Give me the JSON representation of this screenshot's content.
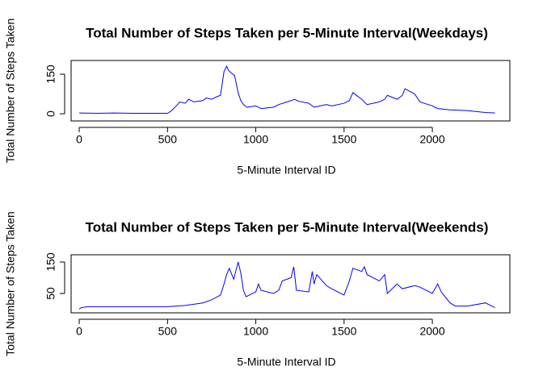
{
  "chart_data": [
    {
      "type": "line",
      "title": "Total Number of Steps Taken per 5-Minute Interval(Weekdays)",
      "x_label": "5-Minute Interval ID",
      "y_label": "Total Number of Steps Taken",
      "xlim": [
        -46,
        2439
      ],
      "ylim": [
        -27,
        202
      ],
      "xticks": [
        0,
        500,
        1000,
        1500,
        2000
      ],
      "yticks": [
        0,
        150
      ],
      "series": [
        {
          "color": "#0000ff",
          "x": [
            0,
            100,
            200,
            300,
            400,
            500,
            520,
            550,
            570,
            600,
            620,
            650,
            700,
            720,
            750,
            780,
            800,
            820,
            835,
            845,
            860,
            880,
            900,
            915,
            930,
            950,
            1000,
            1030,
            1100,
            1130,
            1200,
            1220,
            1240,
            1300,
            1330,
            1400,
            1430,
            1500,
            1530,
            1550,
            1600,
            1630,
            1700,
            1730,
            1745,
            1800,
            1830,
            1845,
            1900,
            1930,
            2000,
            2030,
            2100,
            2200,
            2300,
            2355
          ],
          "values": [
            3,
            2,
            3,
            2,
            2,
            2,
            10,
            30,
            45,
            40,
            55,
            45,
            50,
            60,
            55,
            65,
            70,
            160,
            180,
            165,
            155,
            145,
            80,
            50,
            35,
            25,
            30,
            20,
            25,
            35,
            50,
            55,
            48,
            40,
            25,
            35,
            30,
            40,
            50,
            80,
            55,
            35,
            45,
            55,
            70,
            55,
            70,
            95,
            75,
            45,
            30,
            20,
            15,
            12,
            5,
            3
          ]
        }
      ]
    },
    {
      "type": "line",
      "title": "Total Number of Steps Taken per 5-Minute Interval(Weekends)",
      "x_label": "5-Minute Interval ID",
      "y_label": "Total Number of Steps Taken",
      "xlim": [
        -46,
        2439
      ],
      "ylim": [
        -11.5,
        173
      ],
      "xticks": [
        0,
        500,
        1000,
        1500,
        2000
      ],
      "yticks": [
        50,
        150
      ],
      "series": [
        {
          "color": "#0000ff",
          "x": [
            0,
            10,
            50,
            500,
            550,
            600,
            700,
            750,
            800,
            820,
            835,
            850,
            875,
            900,
            915,
            930,
            945,
            1000,
            1015,
            1030,
            1100,
            1130,
            1150,
            1200,
            1215,
            1230,
            1300,
            1320,
            1330,
            1345,
            1400,
            1430,
            1500,
            1530,
            1550,
            1600,
            1615,
            1630,
            1700,
            1730,
            1745,
            1800,
            1830,
            1900,
            1930,
            2000,
            2030,
            2050,
            2100,
            2130,
            2200,
            2300,
            2330,
            2355
          ],
          "values": [
            0,
            5,
            8,
            8,
            10,
            12,
            20,
            30,
            45,
            80,
            110,
            130,
            95,
            150,
            115,
            60,
            40,
            55,
            80,
            60,
            50,
            60,
            90,
            100,
            135,
            60,
            55,
            120,
            80,
            110,
            75,
            65,
            45,
            90,
            130,
            120,
            135,
            110,
            90,
            110,
            50,
            80,
            65,
            75,
            70,
            50,
            80,
            55,
            20,
            10,
            10,
            20,
            12,
            5
          ]
        }
      ]
    }
  ]
}
